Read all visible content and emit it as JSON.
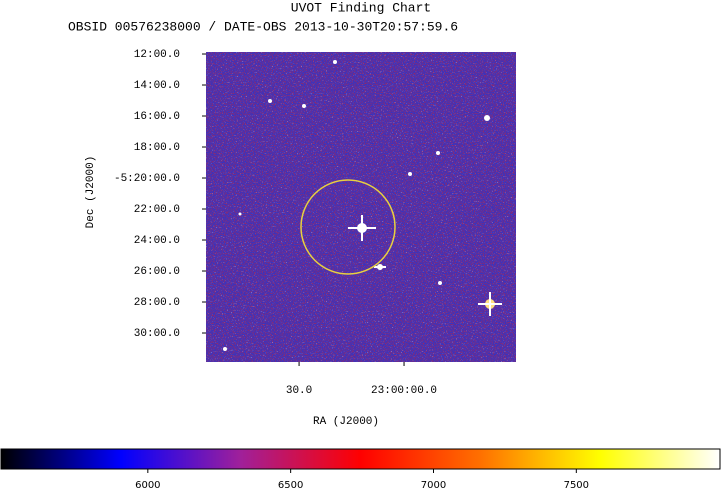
{
  "chart_data": {
    "type": "image",
    "title": "UVOT Finding Chart",
    "subtitle": "OBSID 00576238000 / DATE-OBS 2013-10-30T20:57:59.6",
    "xlabel": "RA (J2000)",
    "ylabel": "Dec (J2000)",
    "xlim": [
      3.4,
      92.0
    ],
    "xticks": [
      {
        "value": 30,
        "label": "30.0"
      },
      {
        "value": 60,
        "label": "23:00:00.0"
      }
    ],
    "ylim": [
      31.87,
      11.87
    ],
    "yticks": [
      {
        "value": 12,
        "label": "12:00.0"
      },
      {
        "value": 14,
        "label": "14:00.0"
      },
      {
        "value": 16,
        "label": "16:00.0"
      },
      {
        "value": 18,
        "label": "18:00.0"
      },
      {
        "value": 20,
        "label": "-5:20:00.0"
      },
      {
        "value": 22,
        "label": "22:00.0"
      },
      {
        "value": 24,
        "label": "24:00.0"
      },
      {
        "value": 26,
        "label": "26:00.0"
      },
      {
        "value": 28,
        "label": "28:00.0"
      },
      {
        "value": 30,
        "label": "30:00.0"
      }
    ],
    "colorbar": {
      "clim": [
        5486,
        8003
      ],
      "ticks": [
        6000,
        6500,
        7000,
        7500
      ],
      "colors": [
        "#000000",
        "#0000ff",
        "#a0209a",
        "#ff0000",
        "#ff7000",
        "#ffff00",
        "#ffffff"
      ]
    },
    "grid": false
  }
}
